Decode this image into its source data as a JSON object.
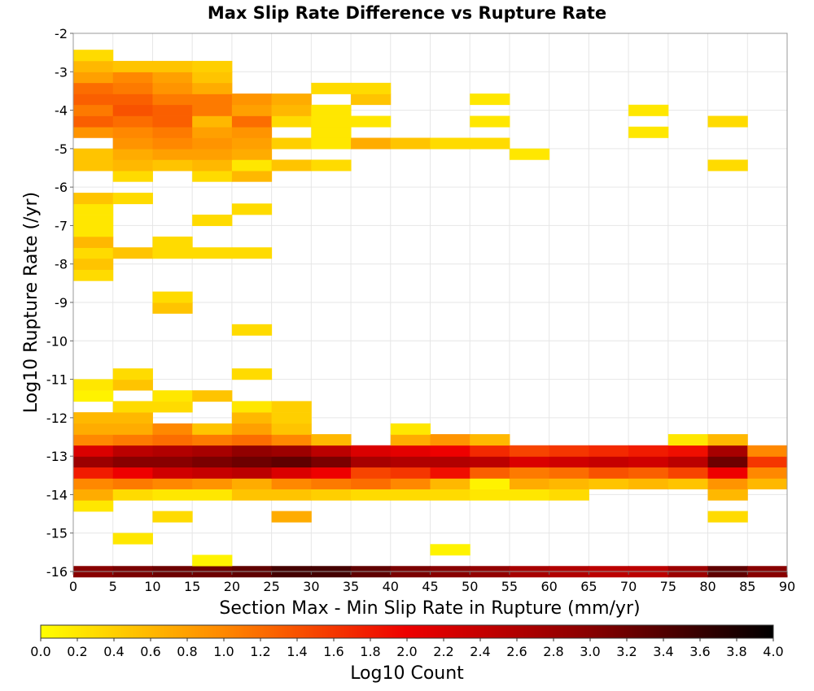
{
  "chart_data": {
    "type": "heatmap",
    "title": "Max Slip Rate Difference vs Rupture Rate",
    "xlabel": "Section Max - Min Slip Rate in Rupture (mm/yr)",
    "ylabel": "Log10 Rupture Rate (/yr)",
    "xlim": [
      0,
      90
    ],
    "ylim": [
      -16,
      -2
    ],
    "x_ticks": [
      "0",
      "5",
      "10",
      "15",
      "20",
      "25",
      "30",
      "35",
      "40",
      "45",
      "50",
      "55",
      "60",
      "65",
      "70",
      "75",
      "80",
      "85",
      "90"
    ],
    "y_ticks": [
      "-2",
      "-3",
      "-4",
      "-5",
      "-6",
      "-7",
      "-8",
      "-9",
      "-10",
      "-11",
      "-12",
      "-13",
      "-14",
      "-15",
      "-16"
    ],
    "bin_width_x": 5,
    "bin_height_y": 0.2857,
    "grid": true,
    "colorbar": {
      "label": "Log10 Count",
      "range": [
        0.0,
        4.0
      ],
      "ticks": [
        "0.0",
        "0.2",
        "0.4",
        "0.6",
        "0.8",
        "1.0",
        "1.2",
        "1.4",
        "1.6",
        "1.8",
        "2.0",
        "2.2",
        "2.4",
        "2.6",
        "2.8",
        "3.0",
        "3.2",
        "3.4",
        "3.6",
        "3.8",
        "4.0"
      ],
      "palette": [
        "#ffff00",
        "#ff8800",
        "#ee0000",
        "#880000",
        "#000000"
      ],
      "placement": "bottom"
    },
    "cells": [
      [
        2.5,
        -16,
        3.0
      ],
      [
        7.5,
        -16,
        3.1
      ],
      [
        12.5,
        -16,
        3.2
      ],
      [
        17.5,
        -16,
        3.2
      ],
      [
        22.5,
        -16,
        3.3
      ],
      [
        27.5,
        -16,
        3.5
      ],
      [
        32.5,
        -16,
        3.5
      ],
      [
        37.5,
        -16,
        3.3
      ],
      [
        42.5,
        -16,
        3.1
      ],
      [
        47.5,
        -16,
        3.0
      ],
      [
        52.5,
        -16,
        2.9
      ],
      [
        57.5,
        -16,
        2.7
      ],
      [
        62.5,
        -16,
        2.6
      ],
      [
        67.5,
        -16,
        2.5
      ],
      [
        72.5,
        -16,
        2.5
      ],
      [
        77.5,
        -16,
        2.8
      ],
      [
        82.5,
        -16,
        3.3
      ],
      [
        87.5,
        -16,
        3.0
      ],
      [
        17.5,
        -15.71,
        0.1
      ],
      [
        47.5,
        -15.43,
        0.1
      ],
      [
        7.5,
        -15.14,
        0.2
      ],
      [
        12.5,
        -14.57,
        0.3
      ],
      [
        27.5,
        -14.57,
        0.7
      ],
      [
        82.5,
        -14.57,
        0.3
      ],
      [
        2.5,
        -14.29,
        0.2
      ],
      [
        2.5,
        -14.0,
        0.7
      ],
      [
        7.5,
        -14.0,
        0.3
      ],
      [
        12.5,
        -14.0,
        0.2
      ],
      [
        17.5,
        -14.0,
        0.2
      ],
      [
        22.5,
        -14.0,
        0.5
      ],
      [
        27.5,
        -14.0,
        0.5
      ],
      [
        32.5,
        -14.0,
        0.4
      ],
      [
        37.5,
        -14.0,
        0.3
      ],
      [
        42.5,
        -14.0,
        0.3
      ],
      [
        47.5,
        -14.0,
        0.3
      ],
      [
        52.5,
        -14.0,
        0.2
      ],
      [
        57.5,
        -14.0,
        0.2
      ],
      [
        62.5,
        -14.0,
        0.3
      ],
      [
        82.5,
        -14.0,
        0.6
      ],
      [
        2.5,
        -13.71,
        1.0
      ],
      [
        7.5,
        -13.71,
        1.1
      ],
      [
        12.5,
        -13.71,
        1.0
      ],
      [
        17.5,
        -13.71,
        0.9
      ],
      [
        22.5,
        -13.71,
        0.7
      ],
      [
        27.5,
        -13.71,
        1.0
      ],
      [
        32.5,
        -13.71,
        1.1
      ],
      [
        37.5,
        -13.71,
        1.2
      ],
      [
        42.5,
        -13.71,
        1.0
      ],
      [
        47.5,
        -13.71,
        0.6
      ],
      [
        52.5,
        -13.71,
        0.1
      ],
      [
        57.5,
        -13.71,
        0.7
      ],
      [
        62.5,
        -13.71,
        0.6
      ],
      [
        67.5,
        -13.71,
        0.5
      ],
      [
        72.5,
        -13.71,
        0.6
      ],
      [
        77.5,
        -13.71,
        0.5
      ],
      [
        82.5,
        -13.71,
        0.9
      ],
      [
        87.5,
        -13.71,
        0.6
      ],
      [
        2.5,
        -13.43,
        1.8
      ],
      [
        7.5,
        -13.43,
        2.0
      ],
      [
        12.5,
        -13.43,
        2.3
      ],
      [
        17.5,
        -13.43,
        2.4
      ],
      [
        22.5,
        -13.43,
        2.5
      ],
      [
        27.5,
        -13.43,
        2.2
      ],
      [
        32.5,
        -13.43,
        2.0
      ],
      [
        37.5,
        -13.43,
        1.5
      ],
      [
        42.5,
        -13.43,
        1.6
      ],
      [
        47.5,
        -13.43,
        1.9
      ],
      [
        52.5,
        -13.43,
        1.3
      ],
      [
        57.5,
        -13.43,
        1.1
      ],
      [
        62.5,
        -13.43,
        1.2
      ],
      [
        67.5,
        -13.43,
        1.4
      ],
      [
        72.5,
        -13.43,
        1.3
      ],
      [
        77.5,
        -13.43,
        1.5
      ],
      [
        82.5,
        -13.43,
        2.0
      ],
      [
        87.5,
        -13.43,
        1.0
      ],
      [
        2.5,
        -13.14,
        2.8
      ],
      [
        7.5,
        -13.14,
        3.0
      ],
      [
        12.5,
        -13.14,
        3.0
      ],
      [
        17.5,
        -13.14,
        3.1
      ],
      [
        22.5,
        -13.14,
        3.2
      ],
      [
        27.5,
        -13.14,
        3.3
      ],
      [
        32.5,
        -13.14,
        3.1
      ],
      [
        37.5,
        -13.14,
        2.7
      ],
      [
        42.5,
        -13.14,
        2.6
      ],
      [
        47.5,
        -13.14,
        2.6
      ],
      [
        52.5,
        -13.14,
        2.5
      ],
      [
        57.5,
        -13.14,
        2.2
      ],
      [
        62.5,
        -13.14,
        2.3
      ],
      [
        67.5,
        -13.14,
        2.4
      ],
      [
        72.5,
        -13.14,
        2.3
      ],
      [
        77.5,
        -13.14,
        2.5
      ],
      [
        82.5,
        -13.14,
        3.2
      ],
      [
        87.5,
        -13.14,
        1.6
      ],
      [
        2.5,
        -12.86,
        2.2
      ],
      [
        7.5,
        -12.86,
        2.5
      ],
      [
        12.5,
        -12.86,
        2.6
      ],
      [
        17.5,
        -12.86,
        2.7
      ],
      [
        22.5,
        -12.86,
        2.9
      ],
      [
        27.5,
        -12.86,
        2.8
      ],
      [
        32.5,
        -12.86,
        2.5
      ],
      [
        37.5,
        -12.86,
        2.2
      ],
      [
        42.5,
        -12.86,
        2.1
      ],
      [
        47.5,
        -12.86,
        2.0
      ],
      [
        52.5,
        -12.86,
        1.7
      ],
      [
        57.5,
        -12.86,
        1.5
      ],
      [
        62.5,
        -12.86,
        1.6
      ],
      [
        67.5,
        -12.86,
        1.7
      ],
      [
        72.5,
        -12.86,
        1.8
      ],
      [
        77.5,
        -12.86,
        1.9
      ],
      [
        82.5,
        -12.86,
        2.7
      ],
      [
        87.5,
        -12.86,
        1.0
      ],
      [
        2.5,
        -12.57,
        1.0
      ],
      [
        7.5,
        -12.57,
        1.1
      ],
      [
        12.5,
        -12.57,
        1.2
      ],
      [
        17.5,
        -12.57,
        1.1
      ],
      [
        22.5,
        -12.57,
        1.2
      ],
      [
        27.5,
        -12.57,
        1.0
      ],
      [
        32.5,
        -12.57,
        0.6
      ],
      [
        42.5,
        -12.57,
        0.7
      ],
      [
        47.5,
        -12.57,
        0.9
      ],
      [
        52.5,
        -12.57,
        0.6
      ],
      [
        77.5,
        -12.57,
        0.2
      ],
      [
        82.5,
        -12.57,
        0.6
      ],
      [
        2.5,
        -12.29,
        0.7
      ],
      [
        7.5,
        -12.29,
        0.7
      ],
      [
        12.5,
        -12.29,
        1.0
      ],
      [
        17.5,
        -12.29,
        0.5
      ],
      [
        22.5,
        -12.29,
        0.8
      ],
      [
        27.5,
        -12.29,
        0.5
      ],
      [
        42.5,
        -12.29,
        0.2
      ],
      [
        2.5,
        -12.0,
        0.6
      ],
      [
        7.5,
        -12.0,
        0.6
      ],
      [
        22.5,
        -12.0,
        0.6
      ],
      [
        27.5,
        -12.0,
        0.4
      ],
      [
        7.5,
        -11.71,
        0.3
      ],
      [
        12.5,
        -11.71,
        0.3
      ],
      [
        22.5,
        -11.71,
        0.2
      ],
      [
        27.5,
        -11.71,
        0.4
      ],
      [
        2.5,
        -11.43,
        0.1
      ],
      [
        12.5,
        -11.43,
        0.2
      ],
      [
        17.5,
        -11.43,
        0.5
      ],
      [
        2.5,
        -11.14,
        0.2
      ],
      [
        7.5,
        -11.14,
        0.5
      ],
      [
        7.5,
        -10.86,
        0.3
      ],
      [
        22.5,
        -10.86,
        0.3
      ],
      [
        22.5,
        -9.71,
        0.3
      ],
      [
        12.5,
        -9.14,
        0.5
      ],
      [
        12.5,
        -8.86,
        0.3
      ],
      [
        2.5,
        -8.29,
        0.3
      ],
      [
        2.5,
        -8.0,
        0.5
      ],
      [
        2.5,
        -7.71,
        0.3
      ],
      [
        7.5,
        -7.71,
        0.5
      ],
      [
        12.5,
        -7.71,
        0.3
      ],
      [
        17.5,
        -7.71,
        0.3
      ],
      [
        22.5,
        -7.71,
        0.3
      ],
      [
        2.5,
        -7.43,
        0.6
      ],
      [
        12.5,
        -7.43,
        0.3
      ],
      [
        2.5,
        -7.14,
        0.2
      ],
      [
        2.5,
        -6.86,
        0.2
      ],
      [
        17.5,
        -6.86,
        0.3
      ],
      [
        2.5,
        -6.57,
        0.2
      ],
      [
        22.5,
        -6.57,
        0.3
      ],
      [
        2.5,
        -6.29,
        0.5
      ],
      [
        7.5,
        -6.29,
        0.3
      ],
      [
        7.5,
        -5.71,
        0.3
      ],
      [
        17.5,
        -5.71,
        0.3
      ],
      [
        22.5,
        -5.71,
        0.6
      ],
      [
        2.5,
        -5.43,
        0.5
      ],
      [
        7.5,
        -5.43,
        0.6
      ],
      [
        12.5,
        -5.43,
        0.5
      ],
      [
        17.5,
        -5.43,
        0.6
      ],
      [
        22.5,
        -5.43,
        0.2
      ],
      [
        27.5,
        -5.43,
        0.5
      ],
      [
        32.5,
        -5.43,
        0.3
      ],
      [
        82.5,
        -5.43,
        0.3
      ],
      [
        2.5,
        -5.14,
        0.5
      ],
      [
        7.5,
        -5.14,
        0.7
      ],
      [
        12.5,
        -5.14,
        0.8
      ],
      [
        17.5,
        -5.14,
        0.8
      ],
      [
        22.5,
        -5.14,
        0.7
      ],
      [
        57.5,
        -5.14,
        0.2
      ],
      [
        7.5,
        -4.86,
        0.9
      ],
      [
        12.5,
        -4.86,
        1.0
      ],
      [
        17.5,
        -4.86,
        0.9
      ],
      [
        22.5,
        -4.86,
        0.8
      ],
      [
        27.5,
        -4.86,
        0.4
      ],
      [
        32.5,
        -4.86,
        0.2
      ],
      [
        37.5,
        -4.86,
        0.7
      ],
      [
        42.5,
        -4.86,
        0.5
      ],
      [
        47.5,
        -4.86,
        0.3
      ],
      [
        52.5,
        -4.86,
        0.3
      ],
      [
        2.5,
        -4.57,
        0.9
      ],
      [
        7.5,
        -4.57,
        1.0
      ],
      [
        12.5,
        -4.57,
        1.1
      ],
      [
        17.5,
        -4.57,
        0.8
      ],
      [
        22.5,
        -4.57,
        0.9
      ],
      [
        32.5,
        -4.57,
        0.2
      ],
      [
        72.5,
        -4.57,
        0.2
      ],
      [
        2.5,
        -4.29,
        1.3
      ],
      [
        7.5,
        -4.29,
        1.2
      ],
      [
        12.5,
        -4.29,
        1.3
      ],
      [
        17.5,
        -4.29,
        0.6
      ],
      [
        22.5,
        -4.29,
        1.2
      ],
      [
        27.5,
        -4.29,
        0.3
      ],
      [
        32.5,
        -4.29,
        0.2
      ],
      [
        37.5,
        -4.29,
        0.2
      ],
      [
        52.5,
        -4.29,
        0.2
      ],
      [
        82.5,
        -4.29,
        0.3
      ],
      [
        2.5,
        -4.0,
        1.1
      ],
      [
        7.5,
        -4.0,
        1.4
      ],
      [
        12.5,
        -4.0,
        1.3
      ],
      [
        17.5,
        -4.0,
        1.1
      ],
      [
        22.5,
        -4.0,
        0.8
      ],
      [
        27.5,
        -4.0,
        0.6
      ],
      [
        32.5,
        -4.0,
        0.2
      ],
      [
        72.5,
        -4.0,
        0.2
      ],
      [
        2.5,
        -3.71,
        1.3
      ],
      [
        7.5,
        -3.71,
        1.3
      ],
      [
        12.5,
        -3.71,
        1.1
      ],
      [
        17.5,
        -3.71,
        1.1
      ],
      [
        22.5,
        -3.71,
        0.9
      ],
      [
        27.5,
        -3.71,
        0.7
      ],
      [
        37.5,
        -3.71,
        0.5
      ],
      [
        52.5,
        -3.71,
        0.2
      ],
      [
        2.5,
        -3.43,
        1.2
      ],
      [
        7.5,
        -3.43,
        1.1
      ],
      [
        12.5,
        -3.43,
        0.9
      ],
      [
        17.5,
        -3.43,
        0.7
      ],
      [
        32.5,
        -3.43,
        0.3
      ],
      [
        37.5,
        -3.43,
        0.3
      ],
      [
        2.5,
        -3.14,
        0.8
      ],
      [
        7.5,
        -3.14,
        1.0
      ],
      [
        12.5,
        -3.14,
        0.8
      ],
      [
        17.5,
        -3.14,
        0.5
      ],
      [
        2.5,
        -2.86,
        0.6
      ],
      [
        7.5,
        -2.86,
        0.5
      ],
      [
        12.5,
        -2.86,
        0.5
      ],
      [
        17.5,
        -2.86,
        0.4
      ],
      [
        2.5,
        -2.57,
        0.3
      ]
    ]
  }
}
